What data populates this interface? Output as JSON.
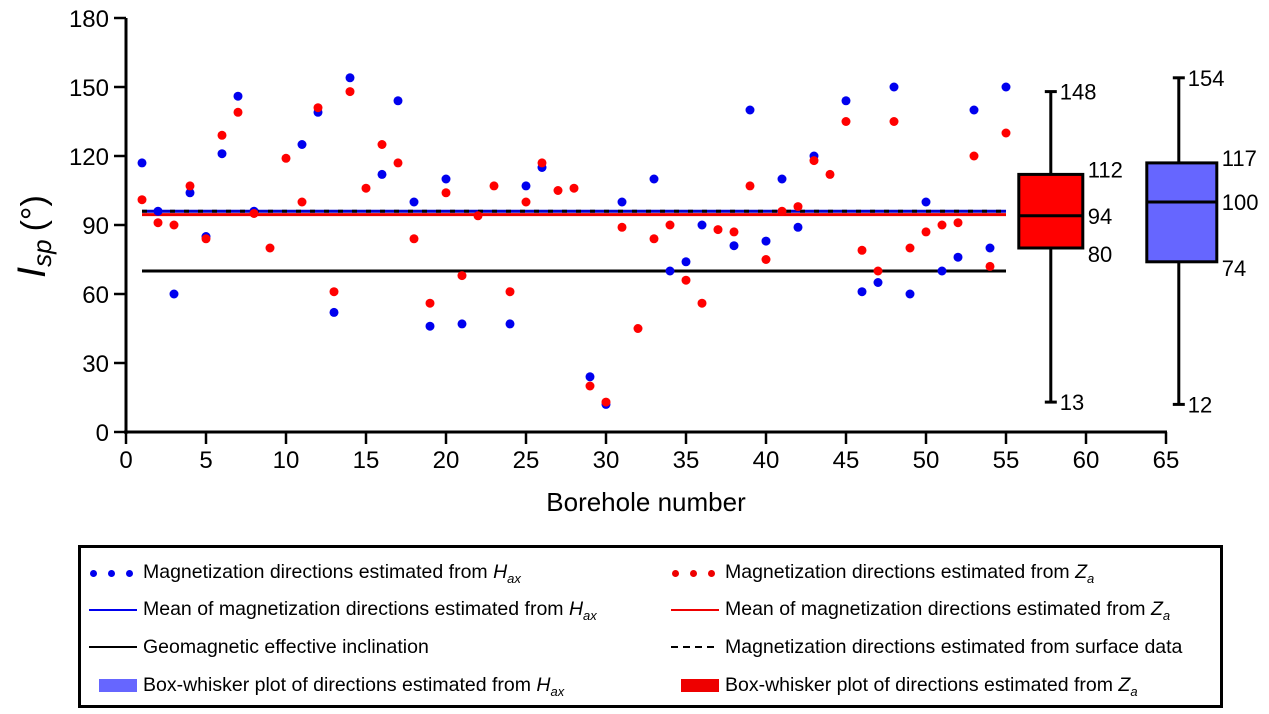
{
  "chart_data": {
    "type": "scatter",
    "title": "",
    "xlabel": "Borehole number",
    "ylabel_main": "I",
    "ylabel_sub": "sp",
    "ylabel_unit": "(°)",
    "xlim": [
      0,
      65
    ],
    "ylim": [
      0,
      180
    ],
    "xticks": [
      0,
      5,
      10,
      15,
      20,
      25,
      30,
      35,
      40,
      45,
      50,
      55,
      60,
      65
    ],
    "yticks": [
      0,
      30,
      60,
      90,
      120,
      150,
      180
    ],
    "grid": false,
    "legend_position": "bottom",
    "x": [
      1,
      2,
      3,
      4,
      5,
      6,
      7,
      8,
      9,
      10,
      11,
      12,
      13,
      14,
      15,
      16,
      17,
      18,
      19,
      20,
      21,
      22,
      23,
      24,
      25,
      26,
      27,
      28,
      29,
      30,
      31,
      32,
      33,
      34,
      35,
      36,
      37,
      38,
      39,
      40,
      41,
      42,
      43,
      44,
      45,
      46,
      47,
      48,
      49,
      50,
      51,
      52,
      53,
      54,
      55
    ],
    "series": [
      {
        "name": "Magnetization directions estimated from Hax",
        "kind": "points",
        "color": "#0000ee",
        "values": [
          117,
          96,
          60,
          104,
          85,
          121,
          146,
          96,
          null,
          null,
          125,
          139,
          52,
          154,
          null,
          112,
          144,
          100,
          46,
          110,
          47,
          null,
          null,
          47,
          107,
          115,
          null,
          null,
          24,
          12,
          100,
          null,
          110,
          70,
          74,
          90,
          null,
          81,
          140,
          83,
          110,
          89,
          120,
          null,
          144,
          61,
          65,
          150,
          60,
          100,
          70,
          76,
          140,
          80,
          150
        ]
      },
      {
        "name": "Magnetization directions estimated from Za",
        "kind": "points",
        "color": "#ff0000",
        "values": [
          101,
          91,
          90,
          107,
          84,
          129,
          139,
          95,
          80,
          119,
          100,
          141,
          61,
          148,
          106,
          125,
          117,
          84,
          56,
          104,
          68,
          94,
          107,
          61,
          100,
          117,
          105,
          106,
          20,
          13,
          89,
          45,
          84,
          90,
          66,
          56,
          88,
          87,
          107,
          75,
          96,
          98,
          118,
          112,
          135,
          79,
          70,
          135,
          80,
          87,
          90,
          91,
          120,
          72,
          130
        ]
      },
      {
        "name": "Mean of magnetization directions estimated from Hax",
        "kind": "hline",
        "color": "#0000cc",
        "value": 96,
        "x_range": [
          1,
          55
        ]
      },
      {
        "name": "Mean of magnetization directions estimated from Za",
        "kind": "hline",
        "color": "#ee0000",
        "value": 94.5,
        "x_range": [
          1,
          55
        ]
      },
      {
        "name": "Geomagnetic effective inclination",
        "kind": "hline",
        "color": "#000000",
        "value": 70,
        "x_range": [
          1,
          55
        ]
      },
      {
        "name": "Magnetization directions estimated from surface data",
        "kind": "hline-dashed",
        "color": "#000000",
        "value": 96,
        "x_range": [
          1,
          55
        ]
      }
    ],
    "boxplots": [
      {
        "name": "Box-whisker plot of directions estimated from Za",
        "x": 57.8,
        "color": "#ff0000",
        "min": 13,
        "q1": 80,
        "median": 94,
        "q3": 112,
        "max": 148,
        "labels": [
          "148",
          "112",
          "94",
          "80",
          "13"
        ]
      },
      {
        "name": "Box-whisker plot of directions estimated from Hax",
        "x": 65.8,
        "color": "#6666ff",
        "min": 12,
        "q1": 74,
        "median": 100,
        "q3": 117,
        "max": 154,
        "labels": [
          "154",
          "117",
          "100",
          "74",
          "12"
        ]
      }
    ]
  },
  "legend": {
    "items": [
      {
        "id": "hax-points",
        "text": "Magnetization directions estimated from ",
        "var": "H",
        "sub": "ax",
        "symbol": "blue-dots"
      },
      {
        "id": "za-points",
        "text": "Magnetization directions estimated from ",
        "var": "Z",
        "sub": "a",
        "symbol": "red-dots"
      },
      {
        "id": "hax-mean",
        "text": "Mean of magnetization directions estimated from ",
        "var": "H",
        "sub": "ax",
        "symbol": "blue-line"
      },
      {
        "id": "za-mean",
        "text": "Mean of magnetization directions estimated from ",
        "var": "Z",
        "sub": "a",
        "symbol": "red-line"
      },
      {
        "id": "geo-incl",
        "text": "Geomagnetic effective inclination",
        "var": "",
        "sub": "",
        "symbol": "black-line"
      },
      {
        "id": "surface",
        "text": "Magnetization directions estimated from surface data",
        "var": "",
        "sub": "",
        "symbol": "black-dashed"
      },
      {
        "id": "hax-box",
        "text": "Box-whisker plot of directions estimated from ",
        "var": "H",
        "sub": "ax",
        "symbol": "blue-swatch"
      },
      {
        "id": "za-box",
        "text": "Box-whisker plot of directions estimated from ",
        "var": "Z",
        "sub": "a",
        "symbol": "red-swatch"
      }
    ]
  }
}
